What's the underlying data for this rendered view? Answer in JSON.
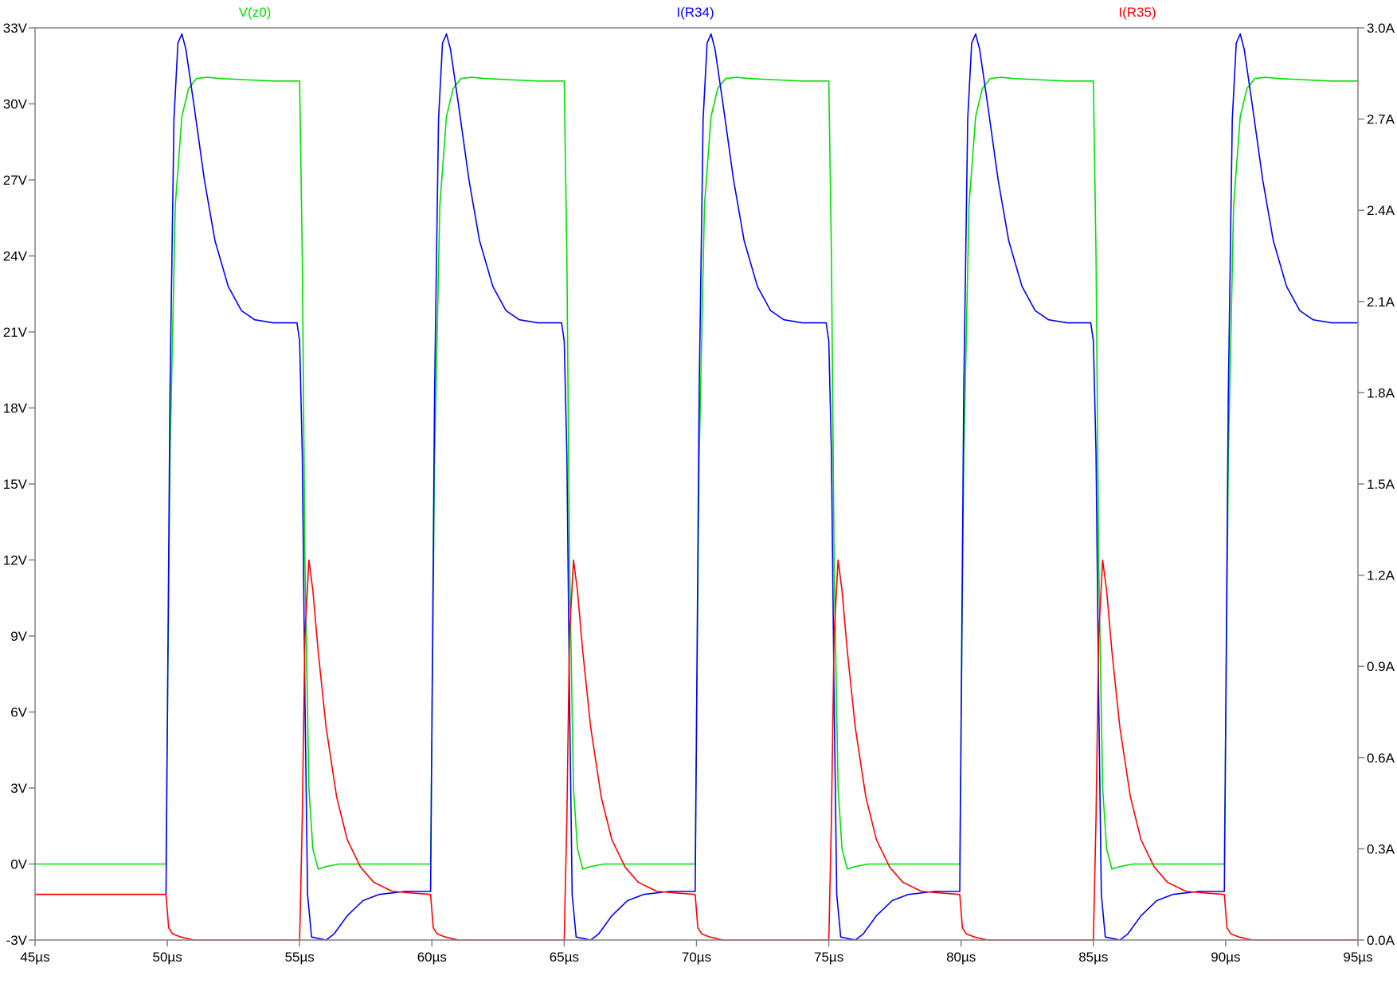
{
  "chart_data": {
    "type": "line",
    "title": "",
    "xlabel": "",
    "ylabel_left": "",
    "ylabel_right": "",
    "grid": false,
    "legend": "top",
    "xlim": [
      45,
      95
    ],
    "ylim_left": [
      -3,
      33
    ],
    "ylim_right": [
      0,
      3
    ],
    "x_ticks": [
      45,
      50,
      55,
      60,
      65,
      70,
      75,
      80,
      85,
      90,
      95
    ],
    "x_tick_labels": [
      "45µs",
      "50µs",
      "55µs",
      "60µs",
      "65µs",
      "70µs",
      "75µs",
      "80µs",
      "85µs",
      "90µs",
      "95µs"
    ],
    "y_left_ticks": [
      -3,
      0,
      3,
      6,
      9,
      12,
      15,
      18,
      21,
      24,
      27,
      30,
      33
    ],
    "y_left_tick_labels": [
      "-3V",
      "0V",
      "3V",
      "6V",
      "9V",
      "12V",
      "15V",
      "18V",
      "21V",
      "24V",
      "27V",
      "30V",
      "33V"
    ],
    "y_right_ticks": [
      0,
      0.3,
      0.6,
      0.9,
      1.2,
      1.5,
      1.8,
      2.1,
      2.4,
      2.7,
      3.0
    ],
    "y_right_tick_labels": [
      "0.0A",
      "0.3A",
      "0.6A",
      "0.9A",
      "1.2A",
      "1.5A",
      "1.8A",
      "2.1A",
      "2.4A",
      "2.7A",
      "3.0A"
    ],
    "series": [
      {
        "name": "V(z0)",
        "color": "#00e000",
        "axis": "left",
        "x": [
          45,
          49.95,
          50.1,
          50.3,
          50.55,
          50.8,
          51.1,
          51.5,
          52,
          53,
          54,
          55.0,
          55.1,
          55.2,
          55.35,
          55.5,
          55.7,
          56,
          56.5,
          57,
          58,
          59,
          59.95,
          60.1,
          60.3,
          60.55,
          60.8,
          61.1,
          61.5,
          62,
          63,
          64,
          65.0,
          65.1,
          65.2,
          65.35,
          65.5,
          65.7,
          66,
          66.5,
          67,
          68,
          69,
          69.95,
          70.1,
          70.3,
          70.55,
          70.8,
          71.1,
          71.5,
          72,
          73,
          74,
          75.0,
          75.1,
          75.2,
          75.35,
          75.5,
          75.7,
          76,
          76.5,
          77,
          78,
          79,
          79.95,
          80.1,
          80.3,
          80.55,
          80.8,
          81.1,
          81.5,
          82,
          83,
          84,
          85.0,
          85.1,
          85.2,
          85.35,
          85.5,
          85.7,
          86,
          86.5,
          87,
          88,
          89,
          89.95,
          90.1,
          90.3,
          90.55,
          90.8,
          91.1,
          91.5,
          92,
          93,
          94,
          95
        ],
        "values": [
          0,
          0,
          16,
          26,
          29.5,
          30.6,
          31,
          31.05,
          31,
          30.95,
          30.9,
          30.9,
          24,
          12,
          3,
          0.6,
          -0.2,
          -0.1,
          0,
          0,
          0,
          0,
          0,
          16,
          26,
          29.5,
          30.6,
          31,
          31.05,
          31,
          30.95,
          30.9,
          30.9,
          24,
          12,
          3,
          0.6,
          -0.2,
          -0.1,
          0,
          0,
          0,
          0,
          0,
          16,
          26,
          29.5,
          30.6,
          31,
          31.05,
          31,
          30.95,
          30.9,
          30.9,
          24,
          12,
          3,
          0.6,
          -0.2,
          -0.1,
          0,
          0,
          0,
          0,
          0,
          16,
          26,
          29.5,
          30.6,
          31,
          31.05,
          31,
          30.95,
          30.9,
          30.9,
          24,
          12,
          3,
          0.6,
          -0.2,
          -0.1,
          0,
          0,
          0,
          0,
          0,
          16,
          26,
          29.5,
          30.6,
          31,
          31.05,
          31,
          30.95,
          30.9,
          30.9
        ]
      },
      {
        "name": "I(R34)",
        "color": "#0000ff",
        "axis": "right",
        "x": [
          45,
          49.95,
          50.1,
          50.25,
          50.4,
          50.55,
          50.7,
          51,
          51.4,
          51.8,
          52.3,
          52.8,
          53.3,
          54,
          54.9,
          55.0,
          55.1,
          55.2,
          55.3,
          55.45,
          56,
          56.3,
          56.8,
          57.4,
          58,
          59,
          59.95,
          60.1,
          60.25,
          60.4,
          60.55,
          60.7,
          61,
          61.4,
          61.8,
          62.3,
          62.8,
          63.3,
          64,
          64.9,
          65.0,
          65.1,
          65.2,
          65.3,
          65.45,
          66,
          66.3,
          66.8,
          67.4,
          68,
          69,
          69.95,
          70.1,
          70.25,
          70.4,
          70.55,
          70.7,
          71,
          71.4,
          71.8,
          72.3,
          72.8,
          73.3,
          74,
          74.9,
          75.0,
          75.1,
          75.2,
          75.3,
          75.45,
          76,
          76.3,
          76.8,
          77.4,
          78,
          79,
          79.95,
          80.1,
          80.25,
          80.4,
          80.55,
          80.7,
          81,
          81.4,
          81.8,
          82.3,
          82.8,
          83.3,
          84,
          84.9,
          85.0,
          85.1,
          85.2,
          85.3,
          85.45,
          86,
          86.3,
          86.8,
          87.4,
          88,
          89,
          89.95,
          90.1,
          90.25,
          90.4,
          90.55,
          90.7,
          91,
          91.4,
          91.8,
          92.3,
          92.8,
          93.3,
          94,
          95
        ],
        "values": [
          0.15,
          0.15,
          1.8,
          2.7,
          2.95,
          2.98,
          2.93,
          2.75,
          2.5,
          2.3,
          2.15,
          2.07,
          2.04,
          2.03,
          2.03,
          1.97,
          1.6,
          0.8,
          0.15,
          0.01,
          0.0,
          0.02,
          0.08,
          0.13,
          0.15,
          0.16,
          0.16,
          1.8,
          2.7,
          2.95,
          2.98,
          2.93,
          2.75,
          2.5,
          2.3,
          2.15,
          2.07,
          2.04,
          2.03,
          2.03,
          1.97,
          1.6,
          0.8,
          0.15,
          0.01,
          0.0,
          0.02,
          0.08,
          0.13,
          0.15,
          0.16,
          0.16,
          1.8,
          2.7,
          2.95,
          2.98,
          2.93,
          2.75,
          2.5,
          2.3,
          2.15,
          2.07,
          2.04,
          2.03,
          2.03,
          1.97,
          1.6,
          0.8,
          0.15,
          0.01,
          0.0,
          0.02,
          0.08,
          0.13,
          0.15,
          0.16,
          0.16,
          1.8,
          2.7,
          2.95,
          2.98,
          2.93,
          2.75,
          2.5,
          2.3,
          2.15,
          2.07,
          2.04,
          2.03,
          2.03,
          1.97,
          1.6,
          0.8,
          0.15,
          0.01,
          0.0,
          0.02,
          0.08,
          0.13,
          0.15,
          0.16,
          0.16,
          1.8,
          2.7,
          2.95,
          2.98,
          2.93,
          2.75,
          2.5,
          2.3,
          2.15,
          2.07,
          2.04,
          2.03,
          2.03
        ]
      },
      {
        "name": "I(R35)",
        "color": "#ff0000",
        "axis": "right",
        "x": [
          45,
          49.95,
          50.05,
          50.2,
          50.5,
          51,
          55.0,
          55.1,
          55.2,
          55.35,
          55.5,
          55.7,
          56,
          56.4,
          56.8,
          57.3,
          57.8,
          58.5,
          59.2,
          59.95,
          60.05,
          60.2,
          60.5,
          61,
          65.0,
          65.1,
          65.2,
          65.35,
          65.5,
          65.7,
          66,
          66.4,
          66.8,
          67.3,
          67.8,
          68.5,
          69.2,
          69.95,
          70.05,
          70.2,
          70.5,
          71,
          75.0,
          75.1,
          75.2,
          75.35,
          75.5,
          75.7,
          76,
          76.4,
          76.8,
          77.3,
          77.8,
          78.5,
          79.2,
          79.95,
          80.05,
          80.2,
          80.5,
          81,
          85.0,
          85.1,
          85.2,
          85.35,
          85.5,
          85.7,
          86,
          86.4,
          86.8,
          87.3,
          87.8,
          88.5,
          89.2,
          89.95,
          90.05,
          90.2,
          90.5,
          91,
          95
        ],
        "values": [
          0.15,
          0.15,
          0.04,
          0.02,
          0.01,
          0.0,
          0.0,
          0.4,
          1.0,
          1.25,
          1.15,
          0.95,
          0.7,
          0.47,
          0.33,
          0.24,
          0.19,
          0.16,
          0.155,
          0.15,
          0.04,
          0.02,
          0.01,
          0.0,
          0.0,
          0.4,
          1.0,
          1.25,
          1.15,
          0.95,
          0.7,
          0.47,
          0.33,
          0.24,
          0.19,
          0.16,
          0.155,
          0.15,
          0.04,
          0.02,
          0.01,
          0.0,
          0.0,
          0.4,
          1.0,
          1.25,
          1.15,
          0.95,
          0.7,
          0.47,
          0.33,
          0.24,
          0.19,
          0.16,
          0.155,
          0.15,
          0.04,
          0.02,
          0.01,
          0.0,
          0.0,
          0.4,
          1.0,
          1.25,
          1.15,
          0.95,
          0.7,
          0.47,
          0.33,
          0.24,
          0.19,
          0.16,
          0.155,
          0.15,
          0.04,
          0.02,
          0.01,
          0.0,
          0.0
        ]
      }
    ]
  }
}
